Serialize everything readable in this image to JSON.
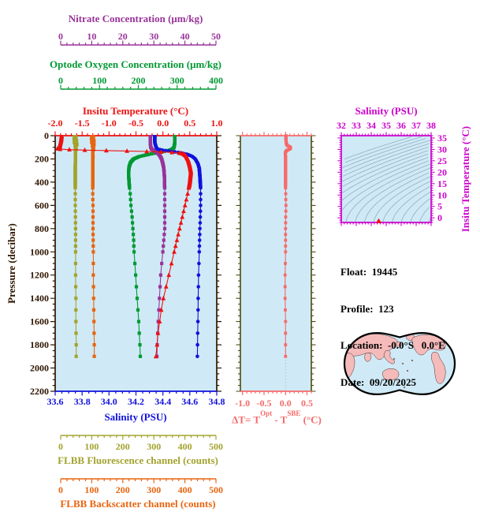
{
  "page": {
    "background": "#ffffff",
    "plot_background": "#cfeaf6"
  },
  "float_info": {
    "lines": [
      "Float:  19445",
      "Profile:  123",
      "Location:  -0.0°S   0.0°E",
      "Date:  09/20/2025"
    ]
  },
  "delta_title": {
    "prefix": "ΔT= T",
    "sup1": "Opt",
    "mid": " - T",
    "sup2": "SBE",
    "suffix": " (°C)"
  },
  "map": {
    "ocean_color": "#cfeaf6",
    "land_color": "#f5baba",
    "outline_color": "#000000"
  },
  "chart_data": {
    "type": "line",
    "subtype": "ocean-float-depth-profiles",
    "pressure_axis": {
      "title": "Pressure (decibar)",
      "color": "#2f1600",
      "range": [
        0,
        2200
      ],
      "ticks": [
        "0",
        "200",
        "400",
        "600",
        "800",
        "1000",
        "1200",
        "1400",
        "1600",
        "1800",
        "2000",
        "2200"
      ],
      "major_tick_step": 200,
      "minor_tick_step": 50
    },
    "sampling": {
      "dense_max": 440,
      "dense_step": 4,
      "mid_max": 1000,
      "mid_step": 50,
      "deep_max": 1900,
      "deep_step": 100
    },
    "main_panel": {
      "axes": {
        "nitrate": {
          "title": "Nitrate Concentration (μm/kg)",
          "color": "#993399",
          "range": [
            0,
            50
          ],
          "ticks": [
            "0",
            "10",
            "20",
            "30",
            "40",
            "50"
          ],
          "minor_tick_step": 2
        },
        "oxygen": {
          "title": "Optode Oxygen Concentration (μm/kg)",
          "color": "#009933",
          "range": [
            0,
            400
          ],
          "ticks": [
            "0",
            "100",
            "200",
            "300",
            "400"
          ],
          "minor_tick_step": 20
        },
        "temperature": {
          "title": "Insitu Temperature (°C)",
          "color": "#ee1111",
          "range": [
            -2,
            1
          ],
          "ticks": [
            "-2.0",
            "-1.5",
            "-1.0",
            "-0.5",
            "0.0",
            "0.5",
            "1.0"
          ],
          "minor_tick_step": 0.1
        },
        "salinity": {
          "title": "Salinity (PSU)",
          "color": "#1111dd",
          "range": [
            33.6,
            34.8
          ],
          "ticks": [
            "33.6",
            "33.8",
            "34.0",
            "34.2",
            "34.4",
            "34.6",
            "34.8"
          ],
          "minor_tick_step": 0.05
        },
        "fluorescence": {
          "title": "FLBB Fluorescence channel (counts)",
          "color": "#a3a32e",
          "range": [
            0,
            500
          ],
          "ticks": [
            "0",
            "100",
            "200",
            "300",
            "400",
            "500"
          ],
          "minor_tick_step": 20
        },
        "backscatter": {
          "title": "FLBB Backscatter channel (counts)",
          "color": "#e8650f",
          "range": [
            0,
            500
          ],
          "ticks": [
            "0",
            "100",
            "200",
            "300",
            "400",
            "500"
          ],
          "minor_tick_step": 20
        }
      },
      "profiles": {
        "temperature": {
          "color": "#ee1111",
          "marker": "triangle",
          "knots": [
            [
              0,
              -1.88
            ],
            [
              40,
              -1.89
            ],
            [
              80,
              -1.91
            ],
            [
              105,
              -1.92
            ],
            [
              112,
              -1.96
            ],
            [
              118,
              -1.88
            ],
            [
              124,
              -1.45
            ],
            [
              130,
              -0.85
            ],
            [
              136,
              -0.3
            ],
            [
              142,
              0.1
            ],
            [
              148,
              0.3
            ],
            [
              158,
              0.38
            ],
            [
              175,
              0.43
            ],
            [
              210,
              0.47
            ],
            [
              260,
              0.5
            ],
            [
              310,
              0.52
            ],
            [
              400,
              0.5
            ],
            [
              500,
              0.46
            ],
            [
              600,
              0.41
            ],
            [
              700,
              0.36
            ],
            [
              800,
              0.31
            ],
            [
              900,
              0.26
            ],
            [
              1000,
              0.21
            ],
            [
              1100,
              0.16
            ],
            [
              1200,
              0.11
            ],
            [
              1300,
              0.06
            ],
            [
              1400,
              0.01
            ],
            [
              1500,
              -0.03
            ],
            [
              1600,
              -0.06
            ],
            [
              1700,
              -0.09
            ],
            [
              1800,
              -0.11
            ],
            [
              1900,
              -0.13
            ]
          ]
        },
        "salinity": {
          "color": "#1111dd",
          "marker": "circle",
          "knots": [
            [
              0,
              34.34
            ],
            [
              60,
              34.34
            ],
            [
              100,
              34.35
            ],
            [
              115,
              34.36
            ],
            [
              125,
              34.4
            ],
            [
              135,
              34.46
            ],
            [
              145,
              34.52
            ],
            [
              160,
              34.58
            ],
            [
              180,
              34.62
            ],
            [
              200,
              34.64
            ],
            [
              240,
              34.66
            ],
            [
              280,
              34.67
            ],
            [
              350,
              34.675
            ],
            [
              450,
              34.68
            ],
            [
              600,
              34.68
            ],
            [
              800,
              34.675
            ],
            [
              1000,
              34.67
            ],
            [
              1200,
              34.665
            ],
            [
              1400,
              34.662
            ],
            [
              1600,
              34.66
            ],
            [
              1800,
              34.657
            ],
            [
              1900,
              34.656
            ]
          ]
        },
        "oxygen": {
          "color": "#009933",
          "marker": "square",
          "knots": [
            [
              0,
              294
            ],
            [
              60,
              294
            ],
            [
              100,
              292
            ],
            [
              115,
              288
            ],
            [
              125,
              280
            ],
            [
              135,
              268
            ],
            [
              145,
              252
            ],
            [
              160,
              228
            ],
            [
              180,
              202
            ],
            [
              200,
              188
            ],
            [
              230,
              180
            ],
            [
              270,
              176
            ],
            [
              320,
              175
            ],
            [
              400,
              176
            ],
            [
              500,
              179
            ],
            [
              600,
              181
            ],
            [
              700,
              184
            ],
            [
              800,
              186
            ],
            [
              900,
              188
            ],
            [
              1000,
              189
            ],
            [
              1100,
              191
            ],
            [
              1200,
              193
            ],
            [
              1400,
              197
            ],
            [
              1600,
              201
            ],
            [
              1800,
              204
            ],
            [
              1900,
              205
            ]
          ]
        },
        "nitrate": {
          "color": "#993399",
          "marker": "square",
          "knots": [
            [
              0,
              28.9
            ],
            [
              70,
              28.9
            ],
            [
              100,
              29.0
            ],
            [
              115,
              29.3
            ],
            [
              125,
              29.8
            ],
            [
              135,
              30.4
            ],
            [
              145,
              31.0
            ],
            [
              160,
              31.6
            ],
            [
              180,
              32.1
            ],
            [
              200,
              32.5
            ],
            [
              240,
              32.9
            ],
            [
              280,
              33.2
            ],
            [
              350,
              33.4
            ],
            [
              450,
              33.5
            ],
            [
              600,
              33.5
            ],
            [
              800,
              33.5
            ],
            [
              1000,
              32.9
            ],
            [
              1200,
              32.2
            ],
            [
              1400,
              31.8
            ],
            [
              1600,
              31.4
            ],
            [
              1800,
              31.1
            ],
            [
              1900,
              31.0
            ]
          ]
        },
        "fluorescence": {
          "color": "#a3a32e",
          "marker": "square",
          "knots": [
            [
              0,
              44
            ],
            [
              15,
              50
            ],
            [
              30,
              42
            ],
            [
              45,
              52
            ],
            [
              60,
              44
            ],
            [
              75,
              53
            ],
            [
              90,
              46
            ],
            [
              110,
              50
            ],
            [
              140,
              47
            ],
            [
              180,
              48
            ],
            [
              250,
              47
            ],
            [
              350,
              47
            ],
            [
              450,
              47
            ],
            [
              600,
              47
            ],
            [
              800,
              48
            ],
            [
              1000,
              48
            ],
            [
              1200,
              48
            ],
            [
              1400,
              49
            ],
            [
              1600,
              49
            ],
            [
              1800,
              50
            ],
            [
              1900,
              50
            ]
          ]
        },
        "backscatter": {
          "color": "#e8650f",
          "marker": "square",
          "knots": [
            [
              0,
              100
            ],
            [
              15,
              106
            ],
            [
              30,
              98
            ],
            [
              45,
              108
            ],
            [
              60,
              100
            ],
            [
              75,
              108
            ],
            [
              90,
              102
            ],
            [
              110,
              106
            ],
            [
              140,
              103
            ],
            [
              180,
              104
            ],
            [
              250,
              103
            ],
            [
              350,
              103
            ],
            [
              450,
              103
            ],
            [
              600,
              104
            ],
            [
              800,
              104
            ],
            [
              1000,
              105
            ],
            [
              1200,
              105
            ],
            [
              1400,
              106
            ],
            [
              1600,
              107
            ],
            [
              1800,
              108
            ],
            [
              1900,
              108
            ]
          ]
        }
      }
    },
    "delta_panel": {
      "axis": {
        "color": "#f76a6a",
        "side_color": "#4b4b10",
        "range": [
          -1.05,
          0.6
        ],
        "ticks": [
          "-1.0",
          "-0.5",
          "0.0",
          "0.5"
        ],
        "minor_tick_step": 0.1
      },
      "profile": {
        "color": "#f76a6a",
        "marker": "square",
        "knots": [
          [
            0,
            0.01
          ],
          [
            40,
            0.01
          ],
          [
            70,
            0.02
          ],
          [
            85,
            0.04
          ],
          [
            95,
            0.1
          ],
          [
            105,
            0.12
          ],
          [
            115,
            0.1
          ],
          [
            125,
            0.04
          ],
          [
            135,
            0.01
          ],
          [
            150,
            -0.01
          ],
          [
            175,
            0.0
          ],
          [
            250,
            0.0
          ],
          [
            350,
            0.0
          ],
          [
            450,
            0.0
          ],
          [
            600,
            0.01
          ],
          [
            800,
            0.0
          ],
          [
            1000,
            0.0
          ],
          [
            1200,
            -0.01
          ],
          [
            1400,
            -0.01
          ],
          [
            1600,
            0.0
          ],
          [
            1800,
            0.0
          ],
          [
            1900,
            0.0
          ]
        ]
      }
    },
    "ts_panel": {
      "color": "#cc00cc",
      "contour_color": "#96adc0",
      "contour_levels": {
        "min": 21,
        "max": 30.5,
        "step": 0.5
      },
      "salinity_axis": {
        "title": "Salinity (PSU)",
        "range": [
          32,
          38
        ],
        "ticks": [
          "32",
          "33",
          "34",
          "35",
          "36",
          "37",
          "38"
        ],
        "minor_tick_step": 0.2
      },
      "temperature_axis": {
        "title": "Insitu Temperature (°C)",
        "range": [
          -2,
          36
        ],
        "ticks": [
          "0",
          "5",
          "10",
          "15",
          "20",
          "25",
          "30",
          "35"
        ],
        "minor_tick_step": 1
      },
      "marker": {
        "salinity": 34.5,
        "temperature": -1.85,
        "color": "#ee1111",
        "shape": "triangle"
      }
    }
  }
}
